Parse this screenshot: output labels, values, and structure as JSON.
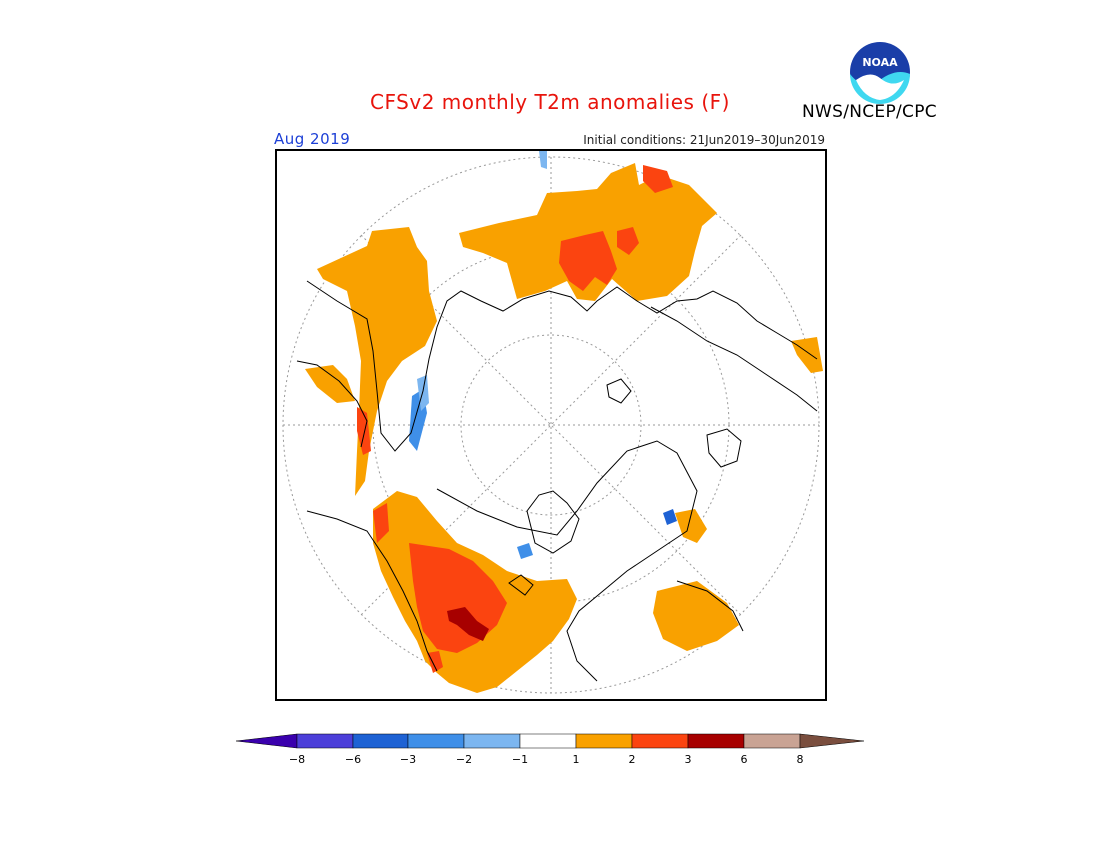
{
  "title": "CFSv2 monthly T2m anomalies (F)",
  "agency": "NWS/NCEP/CPC",
  "logo_text": "NOAA",
  "period": "Aug 2019",
  "initial_conditions": "Initial conditions: 21Jun2019–30Jun2019",
  "colors": {
    "title": "#e8140c",
    "period": "#1c3fd6",
    "anomaly_1_2": "#f9a100",
    "anomaly_2_3": "#fb4410",
    "anomaly_3_6": "#a70000",
    "anomaly_neg_1_2": "#7cb6f0",
    "anomaly_neg_2_3": "#3f8fe8"
  },
  "colorbar": {
    "colors": [
      "#3a00ad",
      "#4c3fd9",
      "#1e62d4",
      "#3f8fe8",
      "#7cb6f0",
      "#ffffff",
      "#f9a100",
      "#fb4410",
      "#a70000",
      "#c9a394",
      "#7a4e3e"
    ],
    "ticks": [
      "−8",
      "−6",
      "−3",
      "−2",
      "−1",
      "1",
      "2",
      "3",
      "6",
      "8"
    ]
  }
}
